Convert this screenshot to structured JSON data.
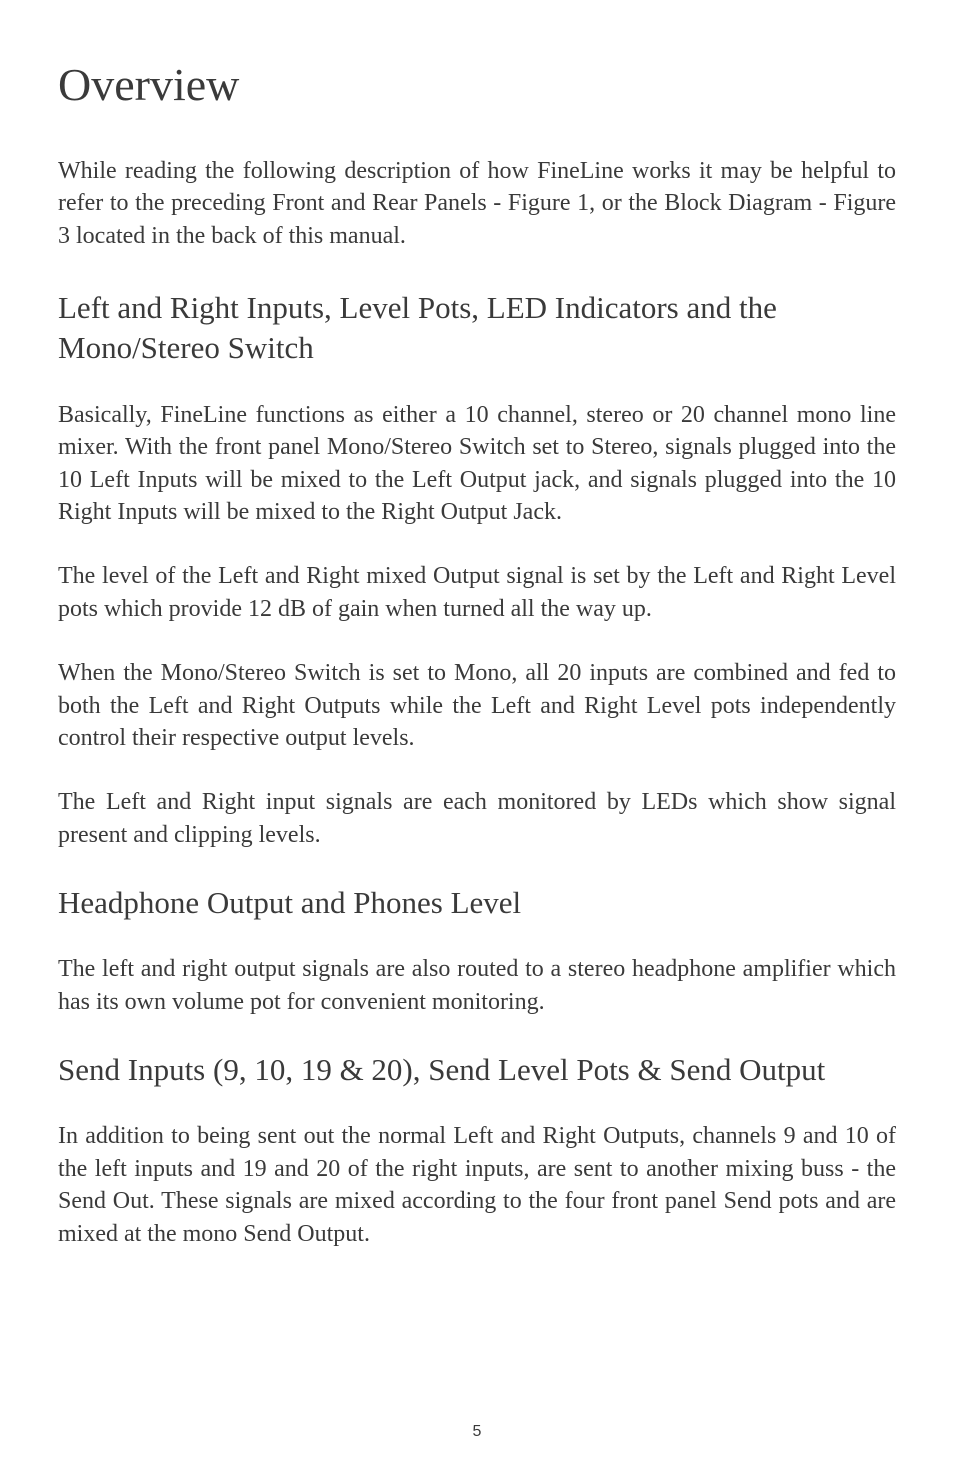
{
  "page": {
    "title": "Overview",
    "intro": "While reading the following description of how FineLine works it may be helpful to refer to the preceding Front and Rear Panels - Figure 1, or the Block Diagram - Figure 3  located in the back of this manual.",
    "page_number": "5"
  },
  "sections": {
    "s1": {
      "heading": "Left and Right Inputs, Level Pots, LED Indicators and the Mono/Stereo Switch",
      "p1": "Basically, FineLine functions as either a 10 channel, stereo or 20 channel mono line mixer.  With the front panel Mono/Stereo Switch set to Stereo, signals plugged into the 10 Left Inputs will be mixed to the Left Output jack, and signals plugged into the 10 Right Inputs will be mixed to the Right Output Jack.",
      "p2": "The level of the Left and Right mixed Output signal is set by the Left and Right Level pots which provide 12 dB of gain when turned all the way up.",
      "p3": "When the Mono/Stereo Switch is set to Mono, all 20 inputs are combined and fed to both the Left and Right Outputs while the Left and Right Level pots independently control their respective output levels.",
      "p4": "The Left and Right input signals are each monitored by LEDs which show signal present and clipping levels."
    },
    "s2": {
      "heading": "Headphone Output and Phones Level",
      "p1": "The left and right output signals are also routed to a stereo headphone amplifier which has its own volume pot for convenient monitoring."
    },
    "s3": {
      "heading": "Send Inputs (9, 10, 19 & 20), Send Level Pots & Send Output",
      "p1": "In addition to being sent out the normal Left and Right Outputs, channels 9 and 10 of the left inputs and 19 and 20 of the right inputs, are sent to another mixing buss - the Send Out.  These signals are mixed according to the four front panel Send pots and are mixed at the mono Send Output."
    }
  },
  "style": {
    "text_color": "#3a3a3a",
    "background_color": "#ffffff",
    "h1_fontsize": 46,
    "h2_fontsize": 31,
    "body_fontsize": 24,
    "pagenum_fontsize": 16,
    "font_family": "Palatino-like serif"
  }
}
